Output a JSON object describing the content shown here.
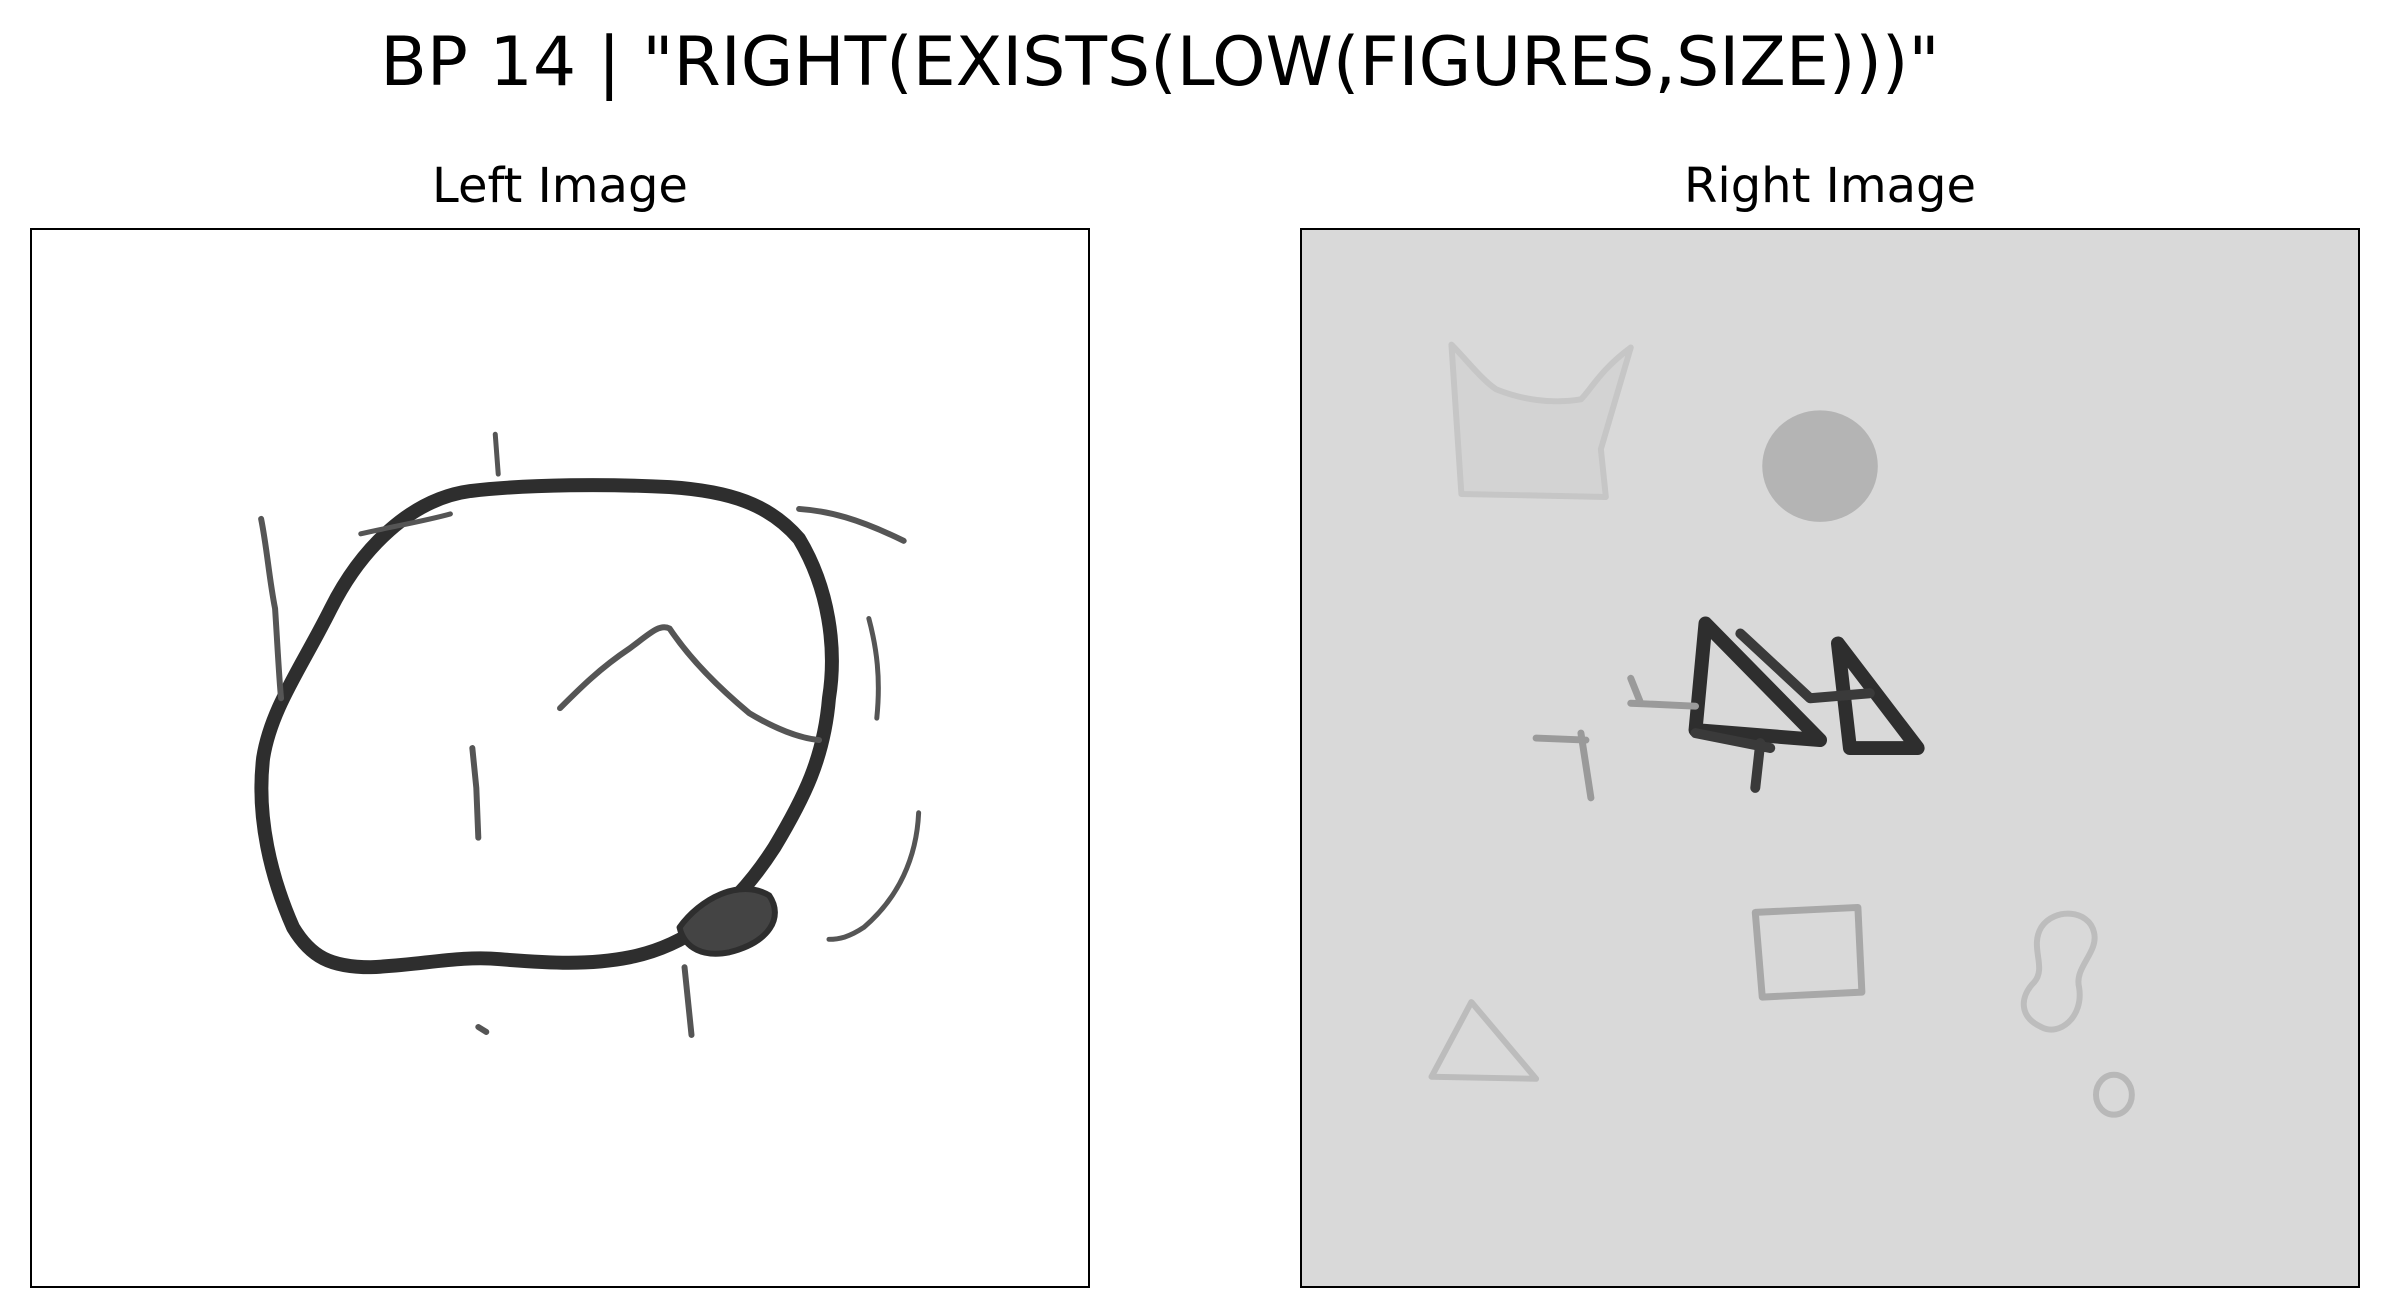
{
  "title": "BP 14 | \"RIGHT(EXISTS(LOW(FIGURES,SIZE)))\"",
  "left_panel": {
    "label": "Left Image",
    "background": "#ffffff"
  },
  "right_panel": {
    "label": "Right Image",
    "background": "#d9d9d9"
  },
  "colors": {
    "ink_dark": "#2e2e2e",
    "ink_medium": "#555555",
    "ink_faint": "#c2c2c2",
    "disc_fill": "#b4b4b4"
  }
}
